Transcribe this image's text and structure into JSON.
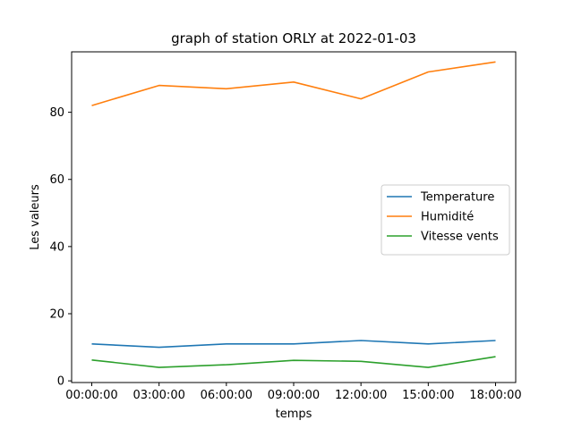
{
  "chart_data": {
    "type": "line",
    "title": "graph of station ORLY at 2022-01-03",
    "xlabel": "temps",
    "ylabel": "Les valeurs",
    "categories": [
      "00:00:00",
      "03:00:00",
      "06:00:00",
      "09:00:00",
      "12:00:00",
      "15:00:00",
      "18:00:00"
    ],
    "yticks": [
      0,
      20,
      40,
      60,
      80
    ],
    "ylim": [
      -0.5,
      98
    ],
    "grid": false,
    "legend_position": "center-right",
    "series": [
      {
        "name": "Temperature",
        "color": "#1f77b4",
        "values": [
          11,
          10,
          11,
          11,
          12,
          11,
          12
        ]
      },
      {
        "name": "Humidité",
        "color": "#ff7f0e",
        "values": [
          82,
          88,
          87,
          89,
          84,
          92,
          95
        ]
      },
      {
        "name": "Vitesse vents",
        "color": "#2ca02c",
        "values": [
          6.2,
          4.0,
          4.8,
          6.1,
          5.8,
          4.0,
          7.2
        ]
      }
    ]
  }
}
